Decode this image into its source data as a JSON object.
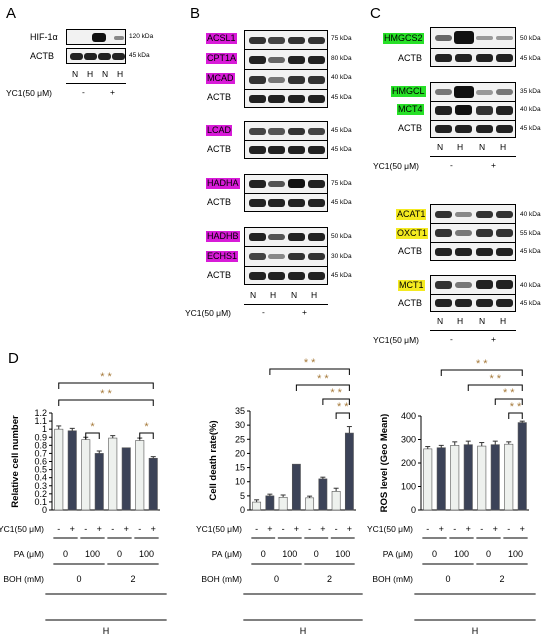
{
  "panels": {
    "A": "A",
    "B": "B",
    "C": "C",
    "D": "D"
  },
  "panelA": {
    "rows": [
      {
        "label": "HIF-1α",
        "kda": "120 kDa"
      },
      {
        "label": "ACTB",
        "kda": "45 kDa"
      }
    ],
    "lanes": [
      "N",
      "H",
      "N",
      "H"
    ],
    "yc1_label": "YC1(50 μM)",
    "yc1_signs": [
      "-",
      "+"
    ]
  },
  "panelB": {
    "rows": [
      {
        "label": "ACSL1",
        "kda": "75 kDa",
        "hl": "m"
      },
      {
        "label": "CPT1A",
        "kda": "80 kDa",
        "hl": "m"
      },
      {
        "label": "MCAD",
        "kda": "40 kDa",
        "hl": "m"
      },
      {
        "label": "ACTB",
        "kda": "45 kDa",
        "hl": ""
      },
      {
        "label": "LCAD",
        "kda": "45 kDa",
        "hl": "m"
      },
      {
        "label": "ACTB",
        "kda": "45 kDa",
        "hl": ""
      },
      {
        "label": "HADHA",
        "kda": "75 kDa",
        "hl": "m"
      },
      {
        "label": "ACTB",
        "kda": "45 kDa",
        "hl": ""
      },
      {
        "label": "HADHB",
        "kda": "50 kDa",
        "hl": "m"
      },
      {
        "label": "ECHS1",
        "kda": "30 kDa",
        "hl": "m"
      },
      {
        "label": "ACTB",
        "kda": "45 kDa",
        "hl": ""
      }
    ],
    "lanes": [
      "N",
      "H",
      "N",
      "H"
    ],
    "yc1_label": "YC1(50 μM)",
    "yc1_signs": [
      "-",
      "+"
    ]
  },
  "panelC": {
    "rows": [
      {
        "label": "HMGCS2",
        "kda": "50 kDa",
        "hl": "g"
      },
      {
        "label": "ACTB",
        "kda": "45 kDa",
        "hl": ""
      },
      {
        "label": "HMGCL",
        "kda": "35 kDa",
        "hl": "g"
      },
      {
        "label": "MCT4",
        "kda": "40 kDa",
        "hl": "g"
      },
      {
        "label": "ACTB",
        "kda": "45 kDa",
        "hl": ""
      },
      {
        "label": "ACAT1",
        "kda": "40 kDa",
        "hl": "y"
      },
      {
        "label": "OXCT1",
        "kda": "55 kDa",
        "hl": "y"
      },
      {
        "label": "ACTB",
        "kda": "45 kDa",
        "hl": ""
      },
      {
        "label": "MCT1",
        "kda": "40 kDa",
        "hl": "y"
      },
      {
        "label": "ACTB",
        "kda": "45 kDa",
        "hl": ""
      }
    ],
    "lanes": [
      "N",
      "H",
      "N",
      "H"
    ],
    "yc1_label": "YC1(50 μM)",
    "yc1_signs": [
      "-",
      "+"
    ]
  },
  "panelD": {
    "row_labels": {
      "yc1": "YC1(50 μM)",
      "pa": "PA (μM)",
      "boh": "BOH (mM)"
    },
    "yc1_signs": [
      "-",
      "+",
      "-",
      "+",
      "-",
      "+",
      "-",
      "+"
    ],
    "pa_values": [
      "0",
      "100",
      "0",
      "100"
    ],
    "boh_values": [
      "0",
      "2"
    ],
    "condition": "H",
    "sig": {
      "double": "* *",
      "single": "*"
    }
  },
  "chart_data": [
    {
      "type": "bar",
      "ylabel": "Relative cell number",
      "ylim": [
        0,
        1.2
      ],
      "yticks": [
        "0",
        "0.1",
        "0.2",
        "0.3",
        "0.4",
        "0.5",
        "0.6",
        "0.7",
        "0.8",
        "0.9",
        "1",
        "1.1",
        "1.2"
      ],
      "categories": [
        "YC1- PA0 BOH0",
        "YC1+ PA0 BOH0",
        "YC1- PA100 BOH0",
        "YC1+ PA100 BOH0",
        "YC1- PA0 BOH2",
        "YC1+ PA0 BOH2",
        "YC1- PA100 BOH2",
        "YC1+ PA100 BOH2"
      ],
      "values": [
        1.0,
        0.98,
        0.87,
        0.7,
        0.89,
        0.77,
        0.86,
        0.64
      ],
      "errors": [
        0.04,
        0.03,
        0.03,
        0.03,
        0.03,
        0.0,
        0.03,
        0.02
      ],
      "colors": {
        "minus": "#eef1ee",
        "plus": "#3c4358"
      }
    },
    {
      "type": "bar",
      "ylabel": "Cell death rate(%)",
      "ylim": [
        0,
        35
      ],
      "yticks": [
        "0",
        "5",
        "10",
        "15",
        "20",
        "25",
        "30",
        "35"
      ],
      "categories": [
        "YC1- PA0 BOH0",
        "YC1+ PA0 BOH0",
        "YC1- PA100 BOH0",
        "YC1+ PA100 BOH0",
        "YC1- PA0 BOH2",
        "YC1+ PA0 BOH2",
        "YC1- PA100 BOH2",
        "YC1+ PA100 BOH2"
      ],
      "values": [
        2.8,
        5.0,
        4.5,
        16.2,
        4.3,
        11.0,
        6.6,
        27.2
      ],
      "errors": [
        0.8,
        0.6,
        0.8,
        0.0,
        0.6,
        0.6,
        1.1,
        2.3
      ],
      "colors": {
        "minus": "#eef1ee",
        "plus": "#3c4358"
      }
    },
    {
      "type": "bar",
      "ylabel": "ROS level (Geo Mean)",
      "ylim": [
        0,
        400
      ],
      "yticks": [
        "0",
        "100",
        "200",
        "300",
        "400"
      ],
      "categories": [
        "YC1- PA0 BOH0",
        "YC1+ PA0 BOH0",
        "YC1- PA100 BOH0",
        "YC1+ PA100 BOH0",
        "YC1- PA0 BOH2",
        "YC1+ PA0 BOH2",
        "YC1- PA100 BOH2",
        "YC1+ PA100 BOH2"
      ],
      "values": [
        260,
        265,
        275,
        278,
        272,
        278,
        280,
        372
      ],
      "errors": [
        10,
        10,
        15,
        15,
        15,
        15,
        10,
        6
      ],
      "colors": {
        "minus": "#eef1ee",
        "plus": "#3c4358"
      }
    }
  ]
}
